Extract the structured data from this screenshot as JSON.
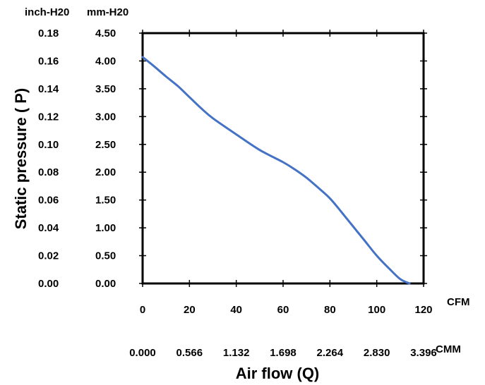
{
  "chart_data": {
    "type": "line",
    "xlabel": "Air flow (Q)",
    "ylabel": "Static pressure ( P)",
    "x_unit": "CFM",
    "x2_unit": "CMM",
    "y_unit_left": "inch-H20",
    "y_unit_right": "mm-H20",
    "xlim": [
      0,
      120
    ],
    "ylim": [
      0,
      4.5
    ],
    "grid": false,
    "x_ticks": [
      "0",
      "20",
      "40",
      "60",
      "80",
      "100",
      "120"
    ],
    "x2_ticks": [
      "0.000",
      "0.566",
      "1.132",
      "1.698",
      "2.264",
      "2.830",
      "3.396"
    ],
    "y_ticks_mm": [
      "0.00",
      "0.50",
      "1.00",
      "1.50",
      "2.00",
      "2.50",
      "3.00",
      "3.50",
      "4.00",
      "4.50"
    ],
    "y_ticks_inch": [
      "0.00",
      "0.02",
      "0.04",
      "0.06",
      "0.08",
      "0.10",
      "0.12",
      "0.14",
      "0.16",
      "0.18"
    ],
    "series": [
      {
        "color": "#4472C4",
        "x": [
          0,
          5,
          10,
          15,
          20,
          25,
          30,
          40,
          50,
          60,
          65,
          70,
          75,
          80,
          85,
          90,
          95,
          100,
          105,
          110,
          114
        ],
        "y": [
          4.07,
          3.9,
          3.72,
          3.55,
          3.35,
          3.15,
          2.97,
          2.68,
          2.4,
          2.18,
          2.05,
          1.9,
          1.72,
          1.53,
          1.28,
          1.02,
          0.76,
          0.5,
          0.28,
          0.08,
          0.0
        ]
      }
    ]
  }
}
